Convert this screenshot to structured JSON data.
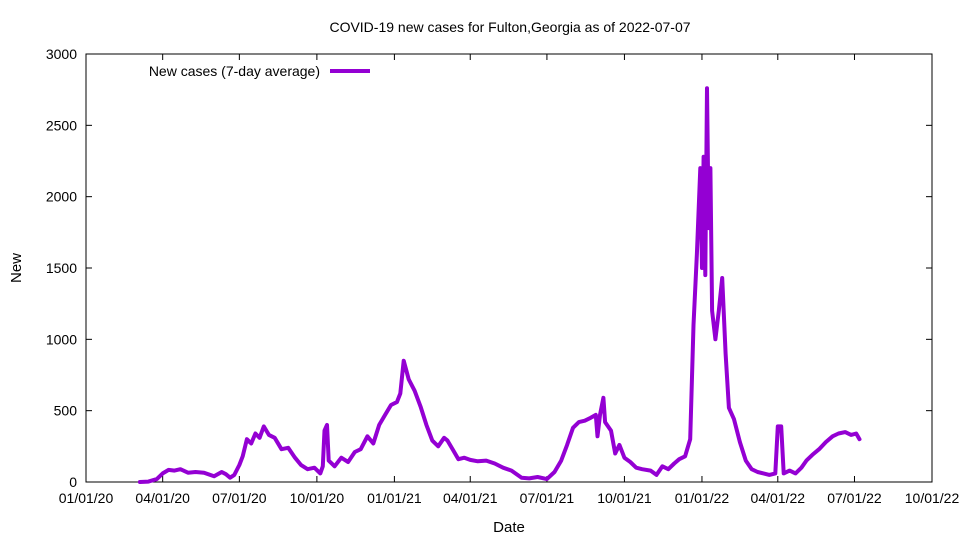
{
  "chart_data": {
    "type": "line",
    "title": "COVID-19 new cases for Fulton,Georgia as of 2022-07-07",
    "xlabel": "Date",
    "ylabel": "New",
    "xlim": [
      "2020-01-01",
      "2022-10-01"
    ],
    "ylim": [
      0,
      3000
    ],
    "x_ticks": [
      "01/01/20",
      "04/01/20",
      "07/01/20",
      "10/01/20",
      "01/01/21",
      "04/01/21",
      "07/01/21",
      "10/01/21",
      "01/01/22",
      "04/01/22",
      "07/01/22",
      "10/01/22"
    ],
    "y_ticks": [
      0,
      500,
      1000,
      1500,
      2000,
      2500,
      3000
    ],
    "legend_position": "top-left",
    "grid": false,
    "series": [
      {
        "name": "New cases (7-day average)",
        "color": "#9400d3",
        "points": [
          [
            "2020-03-05",
            0
          ],
          [
            "2020-03-15",
            3
          ],
          [
            "2020-03-25",
            20
          ],
          [
            "2020-04-01",
            60
          ],
          [
            "2020-04-08",
            85
          ],
          [
            "2020-04-15",
            80
          ],
          [
            "2020-04-22",
            90
          ],
          [
            "2020-05-01",
            65
          ],
          [
            "2020-05-10",
            70
          ],
          [
            "2020-05-20",
            65
          ],
          [
            "2020-06-01",
            40
          ],
          [
            "2020-06-10",
            70
          ],
          [
            "2020-06-15",
            55
          ],
          [
            "2020-06-20",
            30
          ],
          [
            "2020-06-25",
            50
          ],
          [
            "2020-07-01",
            120
          ],
          [
            "2020-07-05",
            180
          ],
          [
            "2020-07-10",
            300
          ],
          [
            "2020-07-15",
            270
          ],
          [
            "2020-07-20",
            340
          ],
          [
            "2020-07-25",
            310
          ],
          [
            "2020-07-30",
            390
          ],
          [
            "2020-08-05",
            330
          ],
          [
            "2020-08-12",
            310
          ],
          [
            "2020-08-20",
            230
          ],
          [
            "2020-08-28",
            240
          ],
          [
            "2020-09-05",
            170
          ],
          [
            "2020-09-12",
            120
          ],
          [
            "2020-09-20",
            90
          ],
          [
            "2020-09-28",
            100
          ],
          [
            "2020-10-05",
            60
          ],
          [
            "2020-10-08",
            110
          ],
          [
            "2020-10-10",
            360
          ],
          [
            "2020-10-13",
            400
          ],
          [
            "2020-10-15",
            150
          ],
          [
            "2020-10-22",
            110
          ],
          [
            "2020-10-30",
            170
          ],
          [
            "2020-11-07",
            140
          ],
          [
            "2020-11-15",
            210
          ],
          [
            "2020-11-22",
            230
          ],
          [
            "2020-11-30",
            320
          ],
          [
            "2020-12-07",
            270
          ],
          [
            "2020-12-14",
            400
          ],
          [
            "2020-12-21",
            470
          ],
          [
            "2020-12-28",
            540
          ],
          [
            "2021-01-04",
            560
          ],
          [
            "2021-01-08",
            620
          ],
          [
            "2021-01-12",
            850
          ],
          [
            "2021-01-18",
            720
          ],
          [
            "2021-01-25",
            640
          ],
          [
            "2021-02-01",
            530
          ],
          [
            "2021-02-08",
            400
          ],
          [
            "2021-02-15",
            290
          ],
          [
            "2021-02-22",
            250
          ],
          [
            "2021-03-01",
            310
          ],
          [
            "2021-03-05",
            290
          ],
          [
            "2021-03-12",
            220
          ],
          [
            "2021-03-18",
            160
          ],
          [
            "2021-03-25",
            170
          ],
          [
            "2021-04-01",
            155
          ],
          [
            "2021-04-10",
            145
          ],
          [
            "2021-04-20",
            150
          ],
          [
            "2021-04-30",
            130
          ],
          [
            "2021-05-10",
            100
          ],
          [
            "2021-05-20",
            80
          ],
          [
            "2021-06-01",
            30
          ],
          [
            "2021-06-10",
            25
          ],
          [
            "2021-06-20",
            35
          ],
          [
            "2021-07-01",
            20
          ],
          [
            "2021-07-10",
            70
          ],
          [
            "2021-07-18",
            150
          ],
          [
            "2021-07-25",
            260
          ],
          [
            "2021-08-01",
            380
          ],
          [
            "2021-08-08",
            420
          ],
          [
            "2021-08-15",
            430
          ],
          [
            "2021-08-22",
            450
          ],
          [
            "2021-08-28",
            470
          ],
          [
            "2021-08-30",
            320
          ],
          [
            "2021-09-02",
            470
          ],
          [
            "2021-09-06",
            590
          ],
          [
            "2021-09-08",
            420
          ],
          [
            "2021-09-15",
            360
          ],
          [
            "2021-09-20",
            200
          ],
          [
            "2021-09-25",
            260
          ],
          [
            "2021-10-01",
            170
          ],
          [
            "2021-10-08",
            140
          ],
          [
            "2021-10-15",
            100
          ],
          [
            "2021-10-22",
            90
          ],
          [
            "2021-11-01",
            80
          ],
          [
            "2021-11-08",
            50
          ],
          [
            "2021-11-15",
            110
          ],
          [
            "2021-11-22",
            90
          ],
          [
            "2021-11-29",
            130
          ],
          [
            "2021-12-05",
            160
          ],
          [
            "2021-12-12",
            180
          ],
          [
            "2021-12-18",
            300
          ],
          [
            "2021-12-22",
            1100
          ],
          [
            "2021-12-26",
            1600
          ],
          [
            "2021-12-30",
            2200
          ],
          [
            "2022-01-01",
            1500
          ],
          [
            "2022-01-03",
            2280
          ],
          [
            "2022-01-05",
            1450
          ],
          [
            "2022-01-07",
            2760
          ],
          [
            "2022-01-09",
            1780
          ],
          [
            "2022-01-11",
            2200
          ],
          [
            "2022-01-13",
            1200
          ],
          [
            "2022-01-17",
            1000
          ],
          [
            "2022-01-21",
            1200
          ],
          [
            "2022-01-25",
            1430
          ],
          [
            "2022-01-29",
            900
          ],
          [
            "2022-02-02",
            520
          ],
          [
            "2022-02-08",
            440
          ],
          [
            "2022-02-15",
            280
          ],
          [
            "2022-02-22",
            150
          ],
          [
            "2022-03-01",
            90
          ],
          [
            "2022-03-08",
            70
          ],
          [
            "2022-03-15",
            60
          ],
          [
            "2022-03-22",
            50
          ],
          [
            "2022-03-29",
            60
          ],
          [
            "2022-04-01",
            390
          ],
          [
            "2022-04-05",
            390
          ],
          [
            "2022-04-08",
            60
          ],
          [
            "2022-04-15",
            80
          ],
          [
            "2022-04-22",
            60
          ],
          [
            "2022-04-29",
            100
          ],
          [
            "2022-05-05",
            150
          ],
          [
            "2022-05-12",
            190
          ],
          [
            "2022-05-20",
            230
          ],
          [
            "2022-05-28",
            280
          ],
          [
            "2022-06-05",
            320
          ],
          [
            "2022-06-12",
            340
          ],
          [
            "2022-06-20",
            350
          ],
          [
            "2022-06-27",
            330
          ],
          [
            "2022-07-03",
            340
          ],
          [
            "2022-07-07",
            300
          ]
        ]
      }
    ]
  }
}
